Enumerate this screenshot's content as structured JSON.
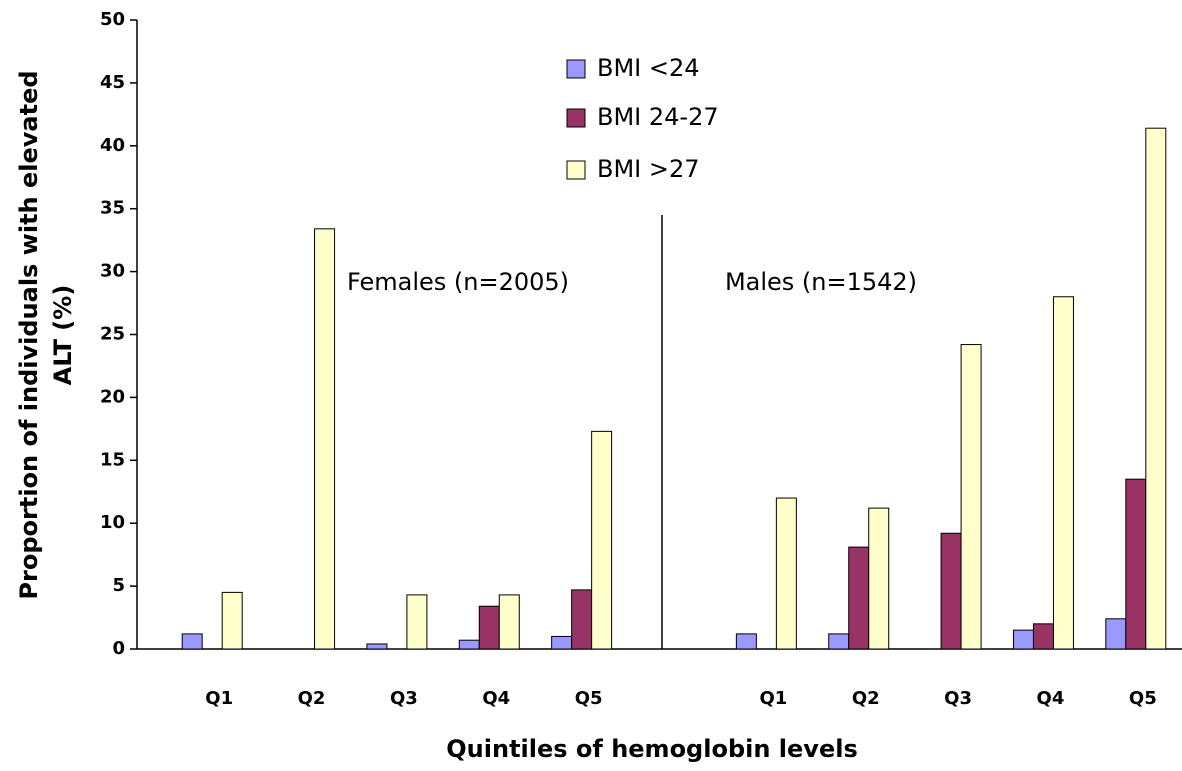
{
  "chart_data": {
    "type": "bar",
    "y_label": [
      "Proportion of individuals with elevated",
      "ALT (%)"
    ],
    "x_label": "Quintiles of hemoglobin levels",
    "annotations": [
      "Females (n=2005)",
      "Males (n=1542)"
    ],
    "categories": [
      "Q1",
      "Q2",
      "Q3",
      "Q4",
      "Q5",
      null,
      "Q1",
      "Q2",
      "Q3",
      "Q4",
      "Q5"
    ],
    "series": [
      {
        "name": "BMI <24",
        "color": "#9999ff",
        "values": [
          1.2,
          0,
          0.4,
          0.7,
          1.0,
          null,
          1.2,
          1.2,
          0,
          1.5,
          2.4
        ]
      },
      {
        "name": "BMI 24-27",
        "color": "#993366",
        "values": [
          0,
          0,
          0,
          3.4,
          4.7,
          null,
          0,
          8.1,
          9.2,
          2.0,
          13.5
        ]
      },
      {
        "name": "BMI >27",
        "color": "#ffffcc",
        "values": [
          4.5,
          33.4,
          4.3,
          4.3,
          17.3,
          null,
          12.0,
          11.2,
          24.2,
          28.0,
          41.4
        ]
      }
    ],
    "ylim": [
      0,
      50
    ],
    "yticks": [
      0,
      5,
      10,
      15,
      20,
      25,
      30,
      35,
      40,
      45,
      50
    ],
    "grid": false,
    "legend": "top-center"
  }
}
